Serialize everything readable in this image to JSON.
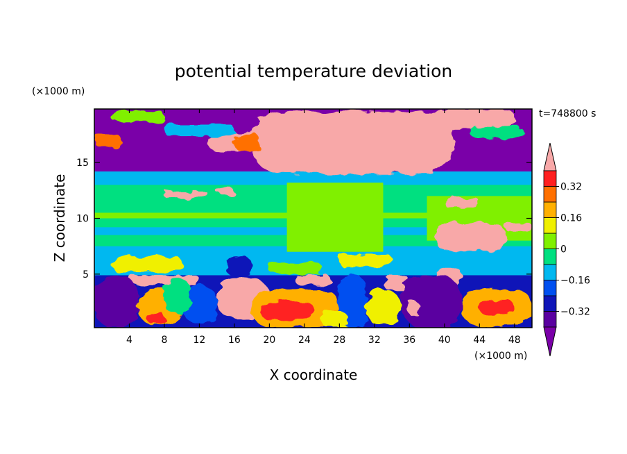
{
  "chart_data": {
    "type": "heatmap",
    "title": "potential temperature deviation",
    "xlabel": "X coordinate",
    "ylabel": "Z coordinate",
    "x_unit": "(×1000 m)",
    "y_unit": "(×1000 m)",
    "time_label": "t=748800 s",
    "xlim": [
      0,
      50
    ],
    "ylim": [
      0.2,
      19.8
    ],
    "x_ticks": [
      "4",
      "8",
      "12",
      "16",
      "20",
      "24",
      "28",
      "32",
      "36",
      "40",
      "44",
      "48"
    ],
    "x_tick_values": [
      4,
      8,
      12,
      16,
      20,
      24,
      28,
      32,
      36,
      40,
      44,
      48
    ],
    "y_ticks": [
      "5",
      "10",
      "15"
    ],
    "y_tick_values": [
      5,
      10,
      15
    ],
    "colorbar": {
      "levels": [
        -0.48,
        -0.4,
        -0.32,
        -0.24,
        -0.16,
        -0.08,
        0,
        0.08,
        0.16,
        0.24,
        0.32,
        0.4,
        0.48
      ],
      "tick_labels": [
        "0.32",
        "0.16",
        "0",
        "−0.16",
        "−0.32"
      ],
      "tick_values": [
        0.32,
        0.16,
        0,
        -0.16,
        -0.32
      ],
      "colors": [
        "#7a00a8",
        "#5a00a0",
        "#0f15b8",
        "#0050f0",
        "#00b8f0",
        "#00e080",
        "#80f000",
        "#f0f000",
        "#ffb000",
        "#ff7000",
        "#ff2020",
        "#f8a8a8"
      ]
    },
    "layers": [
      {
        "z": [
          14.2,
          19.8
        ],
        "description": "upper layer: purple and pink cells"
      },
      {
        "z": [
          4.9,
          14.2
        ],
        "description": "mid layer: green / cyan"
      },
      {
        "z": [
          0.2,
          4.9
        ],
        "description": "lower layer: mixed warm and cold cells"
      }
    ]
  }
}
